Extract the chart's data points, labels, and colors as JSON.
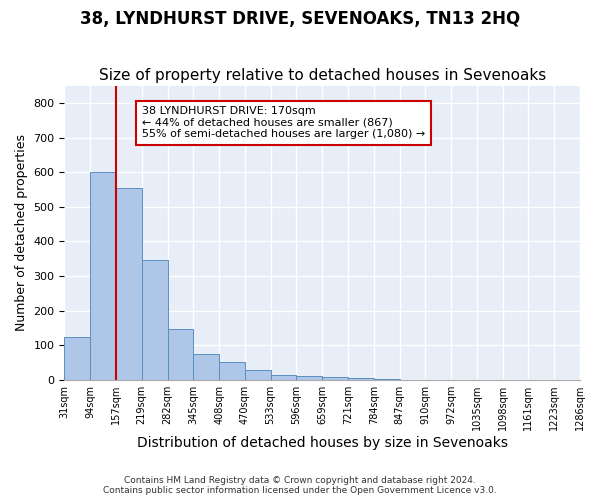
{
  "title": "38, LYNDHURST DRIVE, SEVENOAKS, TN13 2HQ",
  "subtitle": "Size of property relative to detached houses in Sevenoaks",
  "xlabel": "Distribution of detached houses by size in Sevenoaks",
  "ylabel": "Number of detached properties",
  "bar_values": [
    125,
    600,
    555,
    348,
    148,
    75,
    53,
    30,
    16,
    12,
    10,
    5,
    3,
    0,
    0,
    0,
    0,
    0,
    0,
    0
  ],
  "bin_labels": [
    "31sqm",
    "94sqm",
    "157sqm",
    "219sqm",
    "282sqm",
    "345sqm",
    "408sqm",
    "470sqm",
    "533sqm",
    "596sqm",
    "659sqm",
    "721sqm",
    "784sqm",
    "847sqm",
    "910sqm",
    "972sqm",
    "1035sqm",
    "1098sqm",
    "1161sqm",
    "1223sqm",
    "1286sqm"
  ],
  "bar_color": "#aec6e8",
  "bar_edge_color": "#5a8fc0",
  "property_line_x": 2,
  "property_line_color": "#cc0000",
  "annotation_text": "38 LYNDHURST DRIVE: 170sqm\n← 44% of detached houses are smaller (867)\n55% of semi-detached houses are larger (1,080) →",
  "annotation_box_color": "#ffffff",
  "annotation_box_edge_color": "#cc0000",
  "ylim": [
    0,
    850
  ],
  "yticks": [
    0,
    100,
    200,
    300,
    400,
    500,
    600,
    700,
    800
  ],
  "background_color": "#e8eef8",
  "grid_color": "#ffffff",
  "footer_text": "Contains HM Land Registry data © Crown copyright and database right 2024.\nContains public sector information licensed under the Open Government Licence v3.0.",
  "title_fontsize": 12,
  "subtitle_fontsize": 11,
  "xlabel_fontsize": 10,
  "ylabel_fontsize": 9
}
